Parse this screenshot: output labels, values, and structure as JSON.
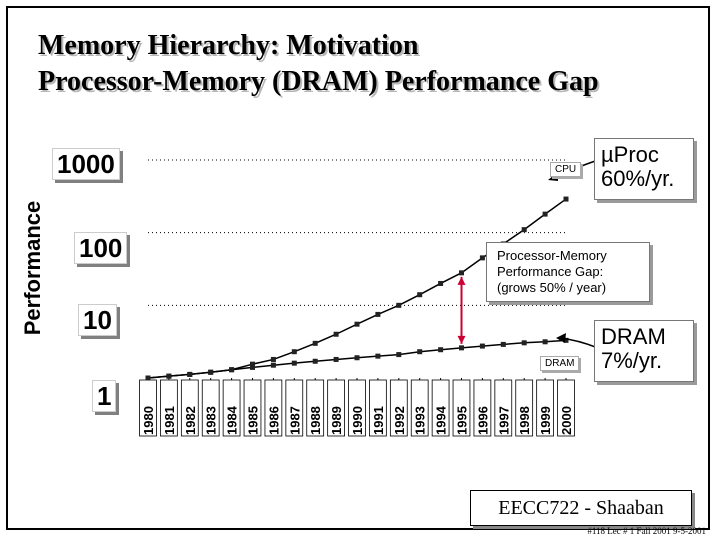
{
  "slide": {
    "title_line1": "Memory Hierarchy:  Motivation",
    "title_line2": "Processor-Memory (DRAM) Performance Gap",
    "footer_box": "EECC722 - Shaaban",
    "footer_note": "#118   Lec # 1   Fall 2001  9-5-2001"
  },
  "callouts": {
    "cpu_growth": "µProc 60%/yr.",
    "dram_growth": "DRAM 7%/yr.",
    "gap": "Processor-Memory Performance Gap: (grows 50% / year)",
    "cpu_tag": "CPU",
    "dram_tag": "DRAM"
  },
  "chart_data": {
    "type": "line",
    "title": "",
    "xlabel": "",
    "ylabel": "Performance",
    "yscale": "log",
    "ylim": [
      1,
      1000
    ],
    "yticks": [
      1,
      10,
      100,
      1000
    ],
    "ytick_labels": [
      "1",
      "10",
      "100",
      "1000"
    ],
    "grid": "horizontal dotted at 10, 100, 1000",
    "x": [
      "1980",
      "1981",
      "1982",
      "1983",
      "1984",
      "1985",
      "1986",
      "1987",
      "1988",
      "1989",
      "1990",
      "1991",
      "1992",
      "1993",
      "1994",
      "1995",
      "1996",
      "1997",
      "1998",
      "1999",
      "2000"
    ],
    "series": [
      {
        "name": "CPU",
        "color": "#000000",
        "values": [
          1,
          1.06,
          1.12,
          1.2,
          1.3,
          1.55,
          1.8,
          2.3,
          3.0,
          4.0,
          5.5,
          7.5,
          10,
          14,
          20,
          28,
          45,
          70,
          110,
          180,
          290
        ]
      },
      {
        "name": "DRAM",
        "color": "#000000",
        "values": [
          1,
          1.06,
          1.12,
          1.2,
          1.3,
          1.4,
          1.5,
          1.6,
          1.7,
          1.8,
          1.9,
          2.0,
          2.1,
          2.3,
          2.45,
          2.6,
          2.75,
          2.9,
          3.05,
          3.15,
          3.3
        ]
      }
    ],
    "gap_marker": {
      "x": "1995",
      "color": "#cc0033"
    }
  }
}
